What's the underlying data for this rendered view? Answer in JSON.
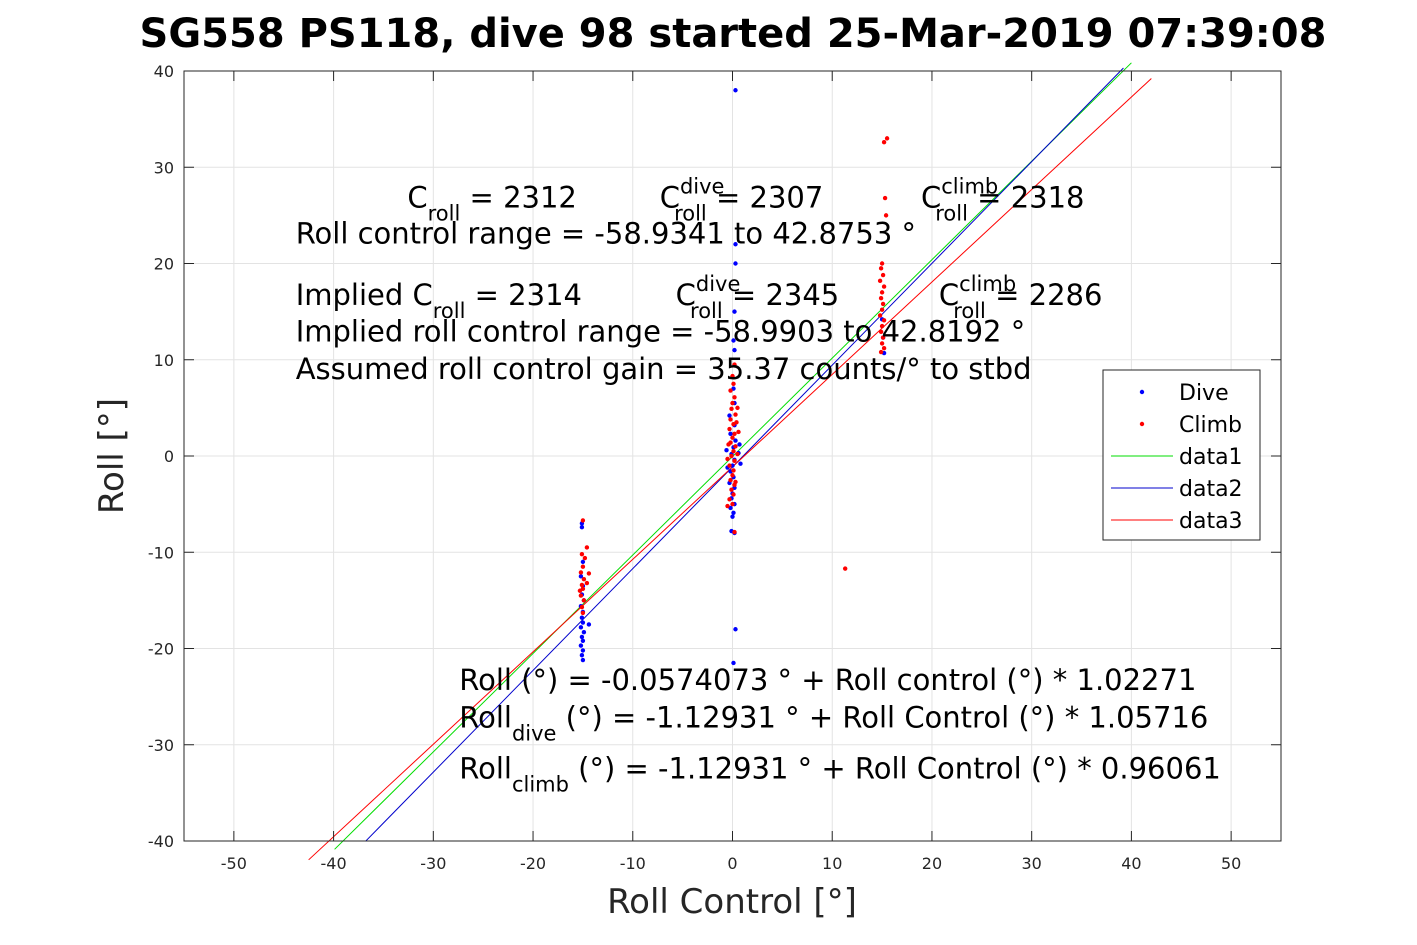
{
  "chart_data": {
    "type": "scatter",
    "title": "SG558 PS118, dive 98 started 25-Mar-2019 07:39:08",
    "xlabel": "Roll Control [°]",
    "ylabel": "Roll [°]",
    "xlim": [
      -55,
      55
    ],
    "ylim": [
      -40,
      40
    ],
    "xticks": [
      -50,
      -40,
      -30,
      -20,
      -10,
      0,
      10,
      20,
      30,
      40,
      50
    ],
    "yticks": [
      -40,
      -30,
      -20,
      -10,
      0,
      10,
      20,
      30,
      40
    ],
    "grid": true,
    "legend_position": "right",
    "series": [
      {
        "name": "Dive",
        "kind": "points",
        "color": "#0000ff",
        "points": [
          [
            -15.1,
            -7
          ],
          [
            -15.1,
            -7.4
          ],
          [
            -15,
            -11
          ],
          [
            -15.2,
            -12.5
          ],
          [
            -15,
            -13.5
          ],
          [
            -15.1,
            -14.4
          ],
          [
            -14.9,
            -15
          ],
          [
            -15.2,
            -15.6
          ],
          [
            -15,
            -16.2
          ],
          [
            -15.1,
            -16.8
          ],
          [
            -15,
            -17.3
          ],
          [
            -15.2,
            -17.8
          ],
          [
            -14.9,
            -18.3
          ],
          [
            -15.1,
            -18.8
          ],
          [
            -15,
            -19.2
          ],
          [
            -15.2,
            -19.7
          ],
          [
            -15,
            -20.2
          ],
          [
            -15.1,
            -20.7
          ],
          [
            -15,
            -21.2
          ],
          [
            -14.4,
            -17.5
          ],
          [
            0.3,
            38
          ],
          [
            0.3,
            22
          ],
          [
            0.3,
            20
          ],
          [
            0.2,
            15
          ],
          [
            0.1,
            12
          ],
          [
            0.2,
            11
          ],
          [
            0.1,
            7
          ],
          [
            0.2,
            5.5
          ],
          [
            -0.3,
            4.2
          ],
          [
            0.2,
            3.2
          ],
          [
            -0.2,
            2.3
          ],
          [
            0.3,
            1.6
          ],
          [
            0.1,
            0.9
          ],
          [
            -0.1,
            0.2
          ],
          [
            0.2,
            -0.4
          ],
          [
            0,
            -1
          ],
          [
            -0.2,
            -1.6
          ],
          [
            0.1,
            -2.2
          ],
          [
            -0.3,
            -2.8
          ],
          [
            0.2,
            -3.3
          ],
          [
            0,
            -3.9
          ],
          [
            -0.1,
            -4.4
          ],
          [
            0.2,
            -5
          ],
          [
            -0.2,
            -5.4
          ],
          [
            0.1,
            -5.9
          ],
          [
            0,
            -6.3
          ],
          [
            -0.1,
            -7.8
          ],
          [
            0.2,
            -8
          ],
          [
            0.3,
            -18
          ],
          [
            0.1,
            -21.5
          ],
          [
            0.8,
            -0.8
          ],
          [
            -0.6,
            0.6
          ],
          [
            0.6,
            0.3
          ],
          [
            -0.5,
            -1.2
          ],
          [
            0.7,
            1.2
          ],
          [
            15.1,
            12.3
          ],
          [
            15,
            14.2
          ],
          [
            15.2,
            10.7
          ]
        ]
      },
      {
        "name": "Climb",
        "kind": "points",
        "color": "#ff0000",
        "points": [
          [
            -15,
            -6.7
          ],
          [
            -14.6,
            -9.5
          ],
          [
            -15.1,
            -10.2
          ],
          [
            -14.8,
            -10.6
          ],
          [
            -15,
            -11.5
          ],
          [
            -15.2,
            -12.1
          ],
          [
            -14.9,
            -12.8
          ],
          [
            -15.1,
            -13.4
          ],
          [
            -15,
            -13.8
          ],
          [
            -15.2,
            -14.5
          ],
          [
            -14.9,
            -15
          ],
          [
            -15.1,
            -15.7
          ],
          [
            -15,
            -16.3
          ],
          [
            -14.6,
            -13.2
          ],
          [
            -14.4,
            -12.2
          ],
          [
            -15.3,
            -14
          ],
          [
            0.2,
            9.5
          ],
          [
            0,
            8.3
          ],
          [
            0.1,
            7.5
          ],
          [
            -0.2,
            6.8
          ],
          [
            0.2,
            6.1
          ],
          [
            0,
            5.5
          ],
          [
            -0.1,
            4.9
          ],
          [
            0.3,
            4.3
          ],
          [
            -0.2,
            3.8
          ],
          [
            0.1,
            3.3
          ],
          [
            -0.3,
            2.8
          ],
          [
            0.2,
            2.3
          ],
          [
            0,
            1.9
          ],
          [
            -0.2,
            1.4
          ],
          [
            0.3,
            1
          ],
          [
            0.1,
            0.5
          ],
          [
            -0.1,
            0
          ],
          [
            0.2,
            -0.5
          ],
          [
            -0.3,
            -1
          ],
          [
            0.1,
            -1.5
          ],
          [
            0,
            -2
          ],
          [
            -0.2,
            -2.5
          ],
          [
            0.2,
            -3
          ],
          [
            -0.1,
            -3.5
          ],
          [
            0.1,
            -4
          ],
          [
            -0.3,
            -4.5
          ],
          [
            0,
            -5
          ],
          [
            0.3,
            -2.7
          ],
          [
            -0.5,
            -0.3
          ],
          [
            0.5,
            0.2
          ],
          [
            -0.4,
            1.2
          ],
          [
            0.6,
            2.5
          ],
          [
            0.4,
            3.5
          ],
          [
            0.5,
            5
          ],
          [
            -0.5,
            -5.2
          ],
          [
            0.2,
            -7.9
          ],
          [
            15.5,
            33
          ],
          [
            15.2,
            32.6
          ],
          [
            15.3,
            26.8
          ],
          [
            15.4,
            25
          ],
          [
            15,
            20
          ],
          [
            14.9,
            19.5
          ],
          [
            15.1,
            18.8
          ],
          [
            14.8,
            18.2
          ],
          [
            15.2,
            17.6
          ],
          [
            15,
            17
          ],
          [
            14.9,
            16.4
          ],
          [
            15.1,
            15.8
          ],
          [
            15,
            15.2
          ],
          [
            14.8,
            14.6
          ],
          [
            15.2,
            14.1
          ],
          [
            15,
            13.5
          ],
          [
            14.9,
            12.9
          ],
          [
            15.1,
            12.3
          ],
          [
            15,
            11.7
          ],
          [
            15.2,
            11.2
          ],
          [
            14.9,
            10.8
          ],
          [
            11.3,
            -11.7
          ]
        ]
      },
      {
        "name": "data1",
        "kind": "line",
        "color": "#00dd00",
        "intercept": -0.0574073,
        "slope": 1.02271,
        "x_range": [
          -39.9,
          40
        ]
      },
      {
        "name": "data2",
        "kind": "line",
        "color": "#0000cc",
        "intercept": -1.12931,
        "slope": 1.05716,
        "x_range": [
          -36.8,
          39.2
        ]
      },
      {
        "name": "data3",
        "kind": "line",
        "color": "#ff0000",
        "intercept": -1.12931,
        "slope": 0.96061,
        "x_range": [
          -42.5,
          42
        ]
      }
    ],
    "annotations": [
      {
        "id": "c1",
        "segments": [
          [
            "C",
            ""
          ],
          [
            "roll",
            "sub"
          ],
          [
            " = 2312",
            ""
          ]
        ],
        "at": [
          -32.6,
          25.8
        ]
      },
      {
        "id": "c2",
        "segments": [
          [
            "C",
            ""
          ],
          [
            "dive",
            "sup"
          ],
          [
            "roll",
            "sub"
          ],
          [
            " = 2307",
            ""
          ]
        ],
        "at": [
          -7.3,
          25.8
        ]
      },
      {
        "id": "c3",
        "segments": [
          [
            "C",
            ""
          ],
          [
            "climb",
            "sup"
          ],
          [
            "roll",
            "sub"
          ],
          [
            " = 2318",
            ""
          ]
        ],
        "at": [
          18.9,
          25.8
        ]
      },
      {
        "id": "r1",
        "segments": [
          [
            "Roll control range = -58.9341 to 42.8753 °",
            ""
          ]
        ],
        "at": [
          -43.8,
          22.1
        ]
      },
      {
        "id": "i1",
        "segments": [
          [
            "Implied C",
            ""
          ],
          [
            "roll",
            "sub"
          ],
          [
            " = 2314",
            ""
          ]
        ],
        "at": [
          -43.8,
          15.7
        ]
      },
      {
        "id": "i2",
        "segments": [
          [
            "C",
            ""
          ],
          [
            "dive",
            "sup"
          ],
          [
            "roll",
            "sub"
          ],
          [
            " = 2345",
            ""
          ]
        ],
        "at": [
          -5.7,
          15.7
        ]
      },
      {
        "id": "i3",
        "segments": [
          [
            "C",
            ""
          ],
          [
            "climb",
            "sup"
          ],
          [
            "roll",
            "sub"
          ],
          [
            " = 2286",
            ""
          ]
        ],
        "at": [
          20.7,
          15.7
        ]
      },
      {
        "id": "r2",
        "segments": [
          [
            "Implied roll control range = -58.9903 to 42.8192 °",
            ""
          ]
        ],
        "at": [
          -43.8,
          11.9
        ]
      },
      {
        "id": "r3",
        "segments": [
          [
            "Assumed roll control gain = 35.37 counts/° to stbd",
            ""
          ]
        ],
        "at": [
          -43.8,
          8.0
        ]
      },
      {
        "id": "f1",
        "segments": [
          [
            "Roll (°) = -0.0574073 ° + Roll control (°) * 1.02271",
            ""
          ]
        ],
        "at": [
          -27.4,
          -24.3
        ]
      },
      {
        "id": "f2",
        "segments": [
          [
            "Roll",
            ""
          ],
          [
            "dive",
            "sub"
          ],
          [
            " (°) = -1.12931 ° + Roll Control (°) * 1.05716",
            ""
          ]
        ],
        "at": [
          -27.4,
          -28.2
        ]
      },
      {
        "id": "f3",
        "segments": [
          [
            "Roll",
            ""
          ],
          [
            "climb",
            "sub"
          ],
          [
            " (°) = -1.12931 ° + Roll Control (°) * 0.96061",
            ""
          ]
        ],
        "at": [
          -27.4,
          -33.5
        ]
      }
    ]
  }
}
